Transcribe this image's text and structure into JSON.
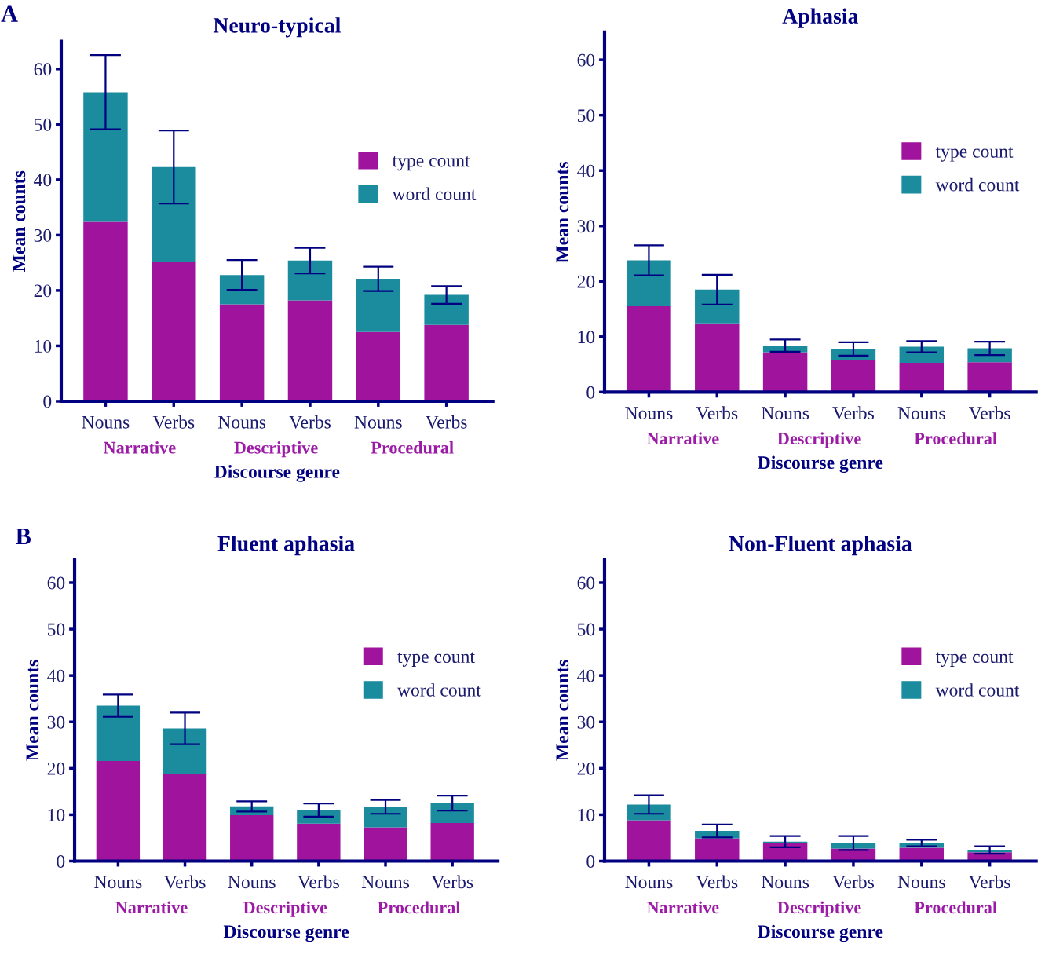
{
  "chart_data": [
    {
      "type": "bar",
      "title": "Neuro-typical",
      "xlabel": "Discourse genre",
      "ylabel": "Mean counts",
      "annotations": [
        "A",
        "Narrative",
        "Descriptive",
        "Procedural"
      ],
      "categories": [
        "Nouns",
        "Verbs",
        "Nouns",
        "Verbs",
        "Nouns",
        "Verbs"
      ],
      "stacked": true,
      "ylim": [
        0,
        65
      ],
      "yticks": [
        0,
        10,
        20,
        30,
        40,
        50,
        60
      ],
      "grid": false,
      "legend": "right",
      "series": [
        {
          "name": "type count",
          "color": "#a0139c",
          "values": [
            32.4,
            25.1,
            17.5,
            18.2,
            12.5,
            13.8
          ]
        },
        {
          "name": "word count",
          "color": "#1a8c9e",
          "values": [
            23.4,
            17.2,
            5.3,
            7.2,
            9.6,
            5.4
          ],
          "errors": [
            6.7,
            6.6,
            2.7,
            2.3,
            2.2,
            1.6
          ]
        }
      ]
    },
    {
      "type": "bar",
      "title": "Aphasia",
      "xlabel": "Discourse genre",
      "ylabel": "Mean counts",
      "annotations": [
        "Narrative",
        "Descriptive",
        "Procedural"
      ],
      "categories": [
        "Nouns",
        "Verbs",
        "Nouns",
        "Verbs",
        "Nouns",
        "Verbs"
      ],
      "stacked": true,
      "ylim": [
        0,
        65
      ],
      "yticks": [
        0,
        10,
        20,
        30,
        40,
        50,
        60
      ],
      "grid": false,
      "legend": "right",
      "series": [
        {
          "name": "type count",
          "color": "#a0139c",
          "values": [
            15.5,
            12.4,
            7.2,
            5.7,
            5.3,
            5.4
          ]
        },
        {
          "name": "word count",
          "color": "#1a8c9e",
          "values": [
            8.3,
            6.1,
            1.2,
            2.1,
            2.9,
            2.5
          ],
          "errors": [
            2.7,
            2.7,
            1.1,
            1.2,
            1.0,
            1.2
          ]
        }
      ]
    },
    {
      "type": "bar",
      "title": "Fluent aphasia",
      "xlabel": "Discourse genre",
      "ylabel": "Mean counts",
      "annotations": [
        "B",
        "Narrative",
        "Descriptive",
        "Procedural"
      ],
      "categories": [
        "Nouns",
        "Verbs",
        "Nouns",
        "Verbs",
        "Nouns",
        "Verbs"
      ],
      "stacked": true,
      "ylim": [
        0,
        65
      ],
      "yticks": [
        0,
        10,
        20,
        30,
        40,
        50,
        60
      ],
      "grid": false,
      "legend": "right",
      "series": [
        {
          "name": "type count",
          "color": "#a0139c",
          "values": [
            21.6,
            18.8,
            9.9,
            8.1,
            7.3,
            8.2
          ]
        },
        {
          "name": "word count",
          "color": "#1a8c9e",
          "values": [
            11.9,
            9.8,
            1.9,
            2.9,
            4.4,
            4.3
          ],
          "errors": [
            2.4,
            3.4,
            1.1,
            1.4,
            1.5,
            1.6
          ]
        }
      ]
    },
    {
      "type": "bar",
      "title": "Non-Fluent aphasia",
      "xlabel": "Discourse genre",
      "ylabel": "Mean counts",
      "annotations": [
        "Narrative",
        "Descriptive",
        "Procedural"
      ],
      "categories": [
        "Nouns",
        "Verbs",
        "Nouns",
        "Verbs",
        "Nouns",
        "Verbs"
      ],
      "stacked": true,
      "ylim": [
        0,
        65
      ],
      "yticks": [
        0,
        10,
        20,
        30,
        40,
        50,
        60
      ],
      "grid": false,
      "legend": "right",
      "series": [
        {
          "name": "type count",
          "color": "#a0139c",
          "values": [
            8.8,
            4.9,
            4.0,
            2.7,
            2.9,
            1.9
          ]
        },
        {
          "name": "word count",
          "color": "#1a8c9e",
          "values": [
            3.4,
            1.6,
            0.2,
            1.2,
            1.0,
            0.5
          ],
          "errors": [
            2.0,
            1.4,
            1.2,
            1.5,
            0.7,
            0.8
          ]
        }
      ]
    }
  ]
}
